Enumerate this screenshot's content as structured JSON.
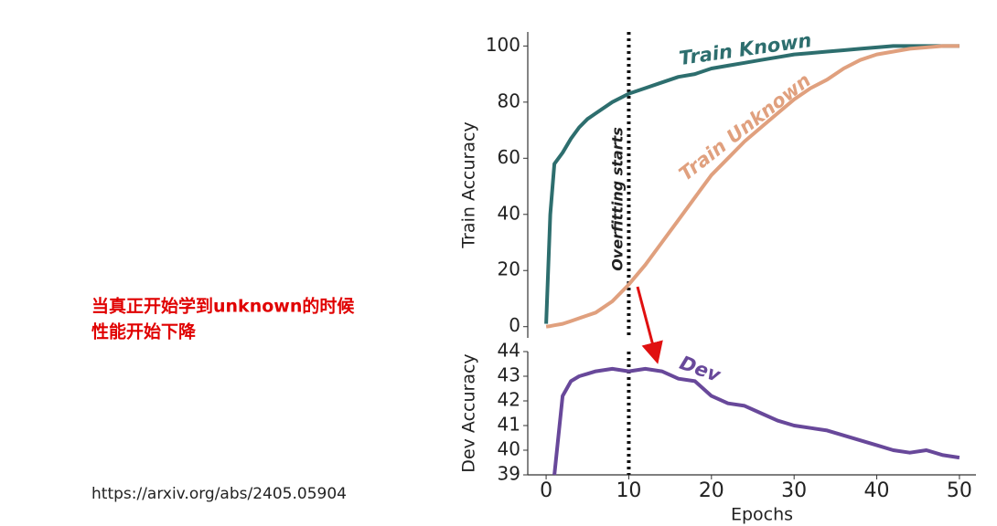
{
  "slide": {
    "note": [
      "当真正开始学到unknown的时候",
      "性能开始下降"
    ],
    "source": "https://arxiv.org/abs/2405.05904"
  },
  "chart_data": [
    {
      "type": "line",
      "ylabel": "Train Accuracy",
      "annotation": "Overfitting starts",
      "vline": 10,
      "xlim": [
        -2,
        52
      ],
      "ylim": [
        -4,
        105
      ],
      "yticks": [
        0,
        20,
        40,
        60,
        80,
        100
      ],
      "x": [
        0,
        0.5,
        1,
        2,
        3,
        4,
        5,
        6,
        8,
        10,
        12,
        14,
        16,
        18,
        20,
        22,
        24,
        26,
        28,
        30,
        32,
        34,
        36,
        38,
        40,
        42,
        44,
        46,
        48,
        50
      ],
      "series": [
        {
          "name": "Train Known",
          "color": "#2d6e6e",
          "values": [
            1,
            40,
            58,
            62,
            67,
            71,
            74,
            76,
            80,
            83,
            85,
            87,
            89,
            90,
            92,
            93,
            94,
            95,
            96,
            97,
            97.5,
            98,
            98.5,
            99,
            99.5,
            100,
            100,
            100,
            100,
            100
          ]
        },
        {
          "name": "Train Unknown",
          "color": "#e0a07e",
          "values": [
            0,
            0.2,
            0.5,
            1,
            2,
            3,
            4,
            5,
            9,
            15,
            22,
            30,
            38,
            46,
            54,
            60,
            66,
            71,
            76,
            81,
            85,
            88,
            92,
            95,
            97,
            98,
            99,
            99.5,
            100,
            100
          ]
        }
      ]
    },
    {
      "type": "line",
      "ylabel": "Dev Accuracy",
      "xlabel": "Epochs",
      "vline": 10,
      "xlim": [
        -2,
        52
      ],
      "ylim": [
        39,
        44
      ],
      "yticks": [
        39,
        40,
        41,
        42,
        43,
        44
      ],
      "xticks": [
        0,
        10,
        20,
        30,
        40,
        50
      ],
      "x": [
        0,
        0.5,
        1,
        2,
        3,
        4,
        5,
        6,
        8,
        10,
        12,
        14,
        16,
        18,
        20,
        22,
        24,
        26,
        28,
        30,
        32,
        34,
        36,
        38,
        40,
        42,
        44,
        46,
        48,
        50
      ],
      "series": [
        {
          "name": "Dev",
          "color": "#68489a",
          "values": [
            null,
            null,
            39,
            42.2,
            42.8,
            43.0,
            43.1,
            43.2,
            43.3,
            43.2,
            43.3,
            43.2,
            42.9,
            42.8,
            42.2,
            41.9,
            41.8,
            41.5,
            41.2,
            41.0,
            40.9,
            40.8,
            40.6,
            40.4,
            40.2,
            40.0,
            39.9,
            40.0,
            39.8,
            39.7
          ]
        }
      ]
    }
  ]
}
